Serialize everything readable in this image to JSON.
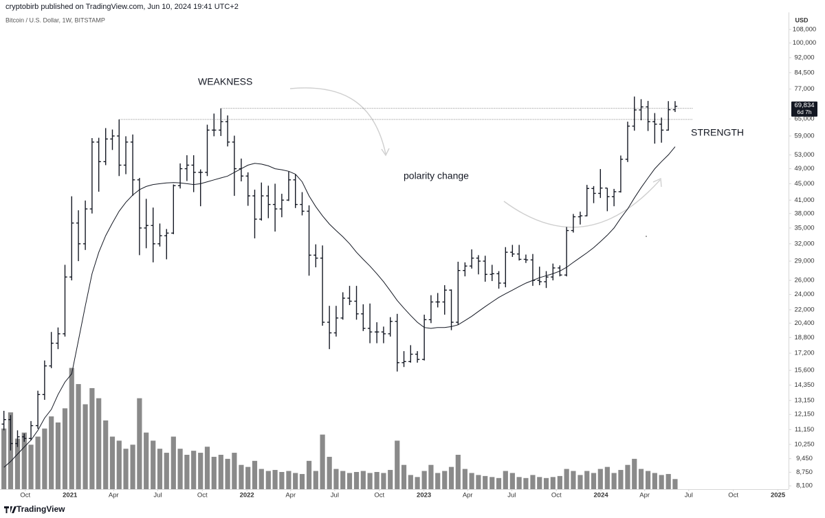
{
  "chart_data": {
    "type": "ohlc",
    "header": "cryptobirb published on TradingView.com, Jun 10, 2024 19:41 UTC+2",
    "title": "Bitcoin / U.S. Dollar, 1W, BITSTAMP",
    "y_axis_label": "USD",
    "footer": "TradingView",
    "log_scale": true,
    "grid": false,
    "color": "#131722",
    "volume_color": "#8a8a8a",
    "ma_color": "#131722",
    "level_color": "#555555",
    "annotation_color": "#cccccc",
    "xlim": [
      2020.605,
      2025.06
    ],
    "ylim": [
      7950,
      119000
    ],
    "vlim": [
      0,
      68000
    ],
    "xticks": [
      {
        "value": 2020.748,
        "label": "Oct"
      },
      2021,
      {
        "value": 2021.247,
        "label": "Apr"
      },
      {
        "value": 2021.496,
        "label": "Jul"
      },
      {
        "value": 2021.748,
        "label": "Oct"
      },
      2022,
      {
        "value": 2022.247,
        "label": "Apr"
      },
      {
        "value": 2022.496,
        "label": "Jul"
      },
      {
        "value": 2022.748,
        "label": "Oct"
      },
      2023,
      {
        "value": 2023.247,
        "label": "Apr"
      },
      {
        "value": 2023.496,
        "label": "Jul"
      },
      {
        "value": 2023.748,
        "label": "Oct"
      },
      2024,
      {
        "value": 2024.247,
        "label": "Apr"
      },
      {
        "value": 2024.496,
        "label": "Jul"
      },
      {
        "value": 2024.748,
        "label": "Oct"
      },
      2025
    ],
    "yticks": [
      {
        "value": 8100,
        "label": "8,100"
      },
      {
        "value": 8750,
        "label": "8,750"
      },
      {
        "value": 9450,
        "label": "9,450"
      },
      {
        "value": 10250,
        "label": "10,250"
      },
      {
        "value": 11150,
        "label": "11,150"
      },
      {
        "value": 12150,
        "label": "12,150"
      },
      {
        "value": 13150,
        "label": "13,150"
      },
      {
        "value": 14350,
        "label": "14,350"
      },
      {
        "value": 15600,
        "label": "15,600"
      },
      {
        "value": 17200,
        "label": "17,200"
      },
      {
        "value": 18800,
        "label": "18,800"
      },
      {
        "value": 20400,
        "label": "20,400"
      },
      {
        "value": 22000,
        "label": "22,000"
      },
      {
        "value": 24000,
        "label": "24,000"
      },
      {
        "value": 26000,
        "label": "26,000"
      },
      {
        "value": 29000,
        "label": "29,000"
      },
      {
        "value": 32000,
        "label": "32,000"
      },
      {
        "value": 35000,
        "label": "35,000"
      },
      {
        "value": 38000,
        "label": "38,000"
      },
      {
        "value": 41000,
        "label": "41,000"
      },
      {
        "value": 45000,
        "label": "45,000"
      },
      {
        "value": 49000,
        "label": "49,000"
      },
      {
        "value": 53000,
        "label": "53,000"
      },
      {
        "value": 59000,
        "label": "59,000"
      },
      {
        "value": 65000,
        "label": "65,000"
      },
      {
        "value": 77000,
        "label": "77,000"
      },
      {
        "value": 84500,
        "label": "84,500"
      },
      {
        "value": 92000,
        "label": "92,000"
      },
      {
        "value": 100000,
        "label": "100,000"
      },
      {
        "value": 108000,
        "label": "108,000"
      }
    ],
    "x": [
      2020.627,
      2020.665,
      2020.704,
      2020.742,
      2020.78,
      2020.819,
      2020.857,
      2020.895,
      2020.933,
      2020.972,
      2021.01,
      2021.048,
      2021.087,
      2021.125,
      2021.163,
      2021.202,
      2021.24,
      2021.278,
      2021.316,
      2021.355,
      2021.393,
      2021.431,
      2021.47,
      2021.508,
      2021.546,
      2021.585,
      2021.623,
      2021.661,
      2021.699,
      2021.738,
      2021.776,
      2021.814,
      2021.853,
      2021.891,
      2021.929,
      2021.968,
      2022.006,
      2022.044,
      2022.082,
      2022.121,
      2022.159,
      2022.197,
      2022.236,
      2022.274,
      2022.312,
      2022.351,
      2022.389,
      2022.427,
      2022.466,
      2022.504,
      2022.542,
      2022.58,
      2022.619,
      2022.657,
      2022.695,
      2022.734,
      2022.772,
      2022.81,
      2022.849,
      2022.887,
      2022.925,
      2022.963,
      2023.002,
      2023.04,
      2023.078,
      2023.117,
      2023.155,
      2023.193,
      2023.232,
      2023.27,
      2023.308,
      2023.346,
      2023.385,
      2023.423,
      2023.461,
      2023.5,
      2023.538,
      2023.576,
      2023.615,
      2023.653,
      2023.691,
      2023.729,
      2023.768,
      2023.806,
      2023.844,
      2023.883,
      2023.921,
      2023.959,
      2023.997,
      2024.036,
      2024.074,
      2024.112,
      2024.151,
      2024.189,
      2024.227,
      2024.266,
      2024.304,
      2024.342,
      2024.381,
      2024.419
    ],
    "open": [
      11500,
      11800,
      10300,
      10700,
      10600,
      11400,
      13600,
      16000,
      18200,
      19200,
      26500,
      36000,
      32000,
      39000,
      57000,
      51000,
      58000,
      59000,
      50000,
      57000,
      46000,
      35000,
      35500,
      32000,
      33500,
      34000,
      44500,
      49000,
      50000,
      48000,
      48000,
      61000,
      61000,
      64000,
      57000,
      49000,
      47000,
      42000,
      36800,
      42000,
      40000,
      39000,
      41000,
      46000,
      40000,
      38500,
      30000,
      29500,
      20500,
      19300,
      21000,
      23500,
      23100,
      21500,
      19800,
      19400,
      19400,
      19200,
      20600,
      16300,
      16400,
      17100,
      16600,
      20800,
      23000,
      23000,
      24600,
      20500,
      27500,
      28200,
      29500,
      29000,
      26900,
      27000,
      25600,
      30500,
      30200,
      29300,
      29200,
      26000,
      25800,
      26500,
      27900,
      26800,
      34500,
      37300,
      37500,
      43800,
      42600,
      43900,
      41800,
      43000,
      51700,
      62400,
      68400,
      69600,
      64000,
      63100,
      61000,
      68500
    ],
    "high": [
      12400,
      12100,
      11100,
      10900,
      11700,
      13900,
      16500,
      19400,
      19900,
      28400,
      41900,
      38700,
      40900,
      58300,
      58400,
      61700,
      61200,
      64800,
      58900,
      59500,
      46500,
      41300,
      39300,
      35900,
      34800,
      44800,
      50500,
      52900,
      52900,
      48800,
      62900,
      67000,
      69000,
      66300,
      59100,
      51900,
      48000,
      43500,
      45300,
      44500,
      45000,
      42500,
      48200,
      47400,
      42900,
      39800,
      31900,
      31700,
      22500,
      22500,
      24300,
      25200,
      25200,
      22700,
      22800,
      20500,
      20000,
      21100,
      21500,
      17400,
      18000,
      17400,
      21400,
      23900,
      24200,
      25300,
      24700,
      28900,
      28800,
      31000,
      30000,
      29900,
      28400,
      27400,
      31400,
      31800,
      31800,
      30100,
      30200,
      28100,
      27400,
      28600,
      28300,
      35200,
      37900,
      38400,
      44700,
      44400,
      48900,
      43900,
      43700,
      52800,
      64000,
      73800,
      72700,
      72000,
      67200,
      65500,
      71900,
      71900
    ],
    "low": [
      11100,
      9900,
      10100,
      10400,
      10500,
      11200,
      13200,
      15800,
      17600,
      18900,
      26000,
      29000,
      30900,
      38000,
      43000,
      50000,
      54500,
      47000,
      47500,
      42000,
      30000,
      31200,
      28800,
      31500,
      29300,
      33800,
      43800,
      45700,
      42900,
      39600,
      47000,
      58900,
      59000,
      55600,
      42000,
      45600,
      39700,
      33000,
      36500,
      37000,
      34300,
      37200,
      40800,
      39200,
      37600,
      26700,
      28000,
      20100,
      17600,
      18900,
      20800,
      22600,
      20800,
      19500,
      18200,
      18200,
      18200,
      18900,
      15500,
      15900,
      16300,
      16300,
      16500,
      20400,
      22300,
      21400,
      19600,
      20200,
      26600,
      27800,
      26900,
      25800,
      25900,
      24800,
      25000,
      29700,
      29100,
      28700,
      25200,
      25300,
      24900,
      26000,
      26600,
      26600,
      34100,
      35700,
      37400,
      40300,
      41500,
      38500,
      39600,
      42800,
      50900,
      60800,
      64500,
      60700,
      56500,
      56800,
      60800,
      67600
    ],
    "close": [
      11800,
      10300,
      10700,
      10600,
      11400,
      13600,
      16000,
      18200,
      19200,
      26500,
      36000,
      32000,
      39000,
      57000,
      51000,
      58000,
      59000,
      50000,
      57000,
      46000,
      35000,
      35500,
      32000,
      33500,
      34000,
      44500,
      49000,
      50000,
      48000,
      48000,
      61000,
      61000,
      64000,
      57000,
      49000,
      47000,
      42000,
      36800,
      42000,
      40000,
      39000,
      41000,
      46000,
      40000,
      38500,
      30000,
      29500,
      20500,
      19300,
      21000,
      23500,
      23100,
      21500,
      19800,
      19400,
      19400,
      19200,
      20600,
      16300,
      16400,
      17100,
      16600,
      20800,
      23000,
      23000,
      24600,
      20500,
      27500,
      28200,
      29500,
      29000,
      26900,
      27000,
      25600,
      30500,
      30200,
      29300,
      29200,
      26000,
      25800,
      26500,
      27900,
      26800,
      34500,
      37300,
      37500,
      43800,
      42600,
      43900,
      41800,
      43000,
      51700,
      62400,
      68400,
      69600,
      64000,
      63100,
      61000,
      68500,
      69834
    ],
    "volume": [
      30000,
      38000,
      25000,
      28000,
      22000,
      26000,
      30000,
      36000,
      33000,
      40000,
      60000,
      52000,
      42000,
      50000,
      45000,
      34000,
      26000,
      24000,
      20000,
      22000,
      45000,
      28000,
      24000,
      20000,
      18000,
      26000,
      20000,
      17000,
      19000,
      18000,
      21000,
      16000,
      17000,
      15000,
      18000,
      12000,
      11000,
      14000,
      10000,
      9000,
      9500,
      8500,
      9000,
      8000,
      7500,
      14000,
      9000,
      27000,
      16000,
      10000,
      9000,
      8000,
      8500,
      9000,
      8000,
      8500,
      8000,
      9500,
      24000,
      12000,
      7000,
      6000,
      9000,
      12000,
      8000,
      9000,
      11000,
      17000,
      10000,
      8000,
      7000,
      6500,
      6000,
      5500,
      9000,
      8000,
      6000,
      5500,
      7000,
      6000,
      5500,
      6000,
      6500,
      10000,
      9000,
      7000,
      9000,
      8000,
      10000,
      11000,
      8000,
      9500,
      12000,
      15000,
      10000,
      9000,
      8000,
      7000,
      7500,
      5000
    ],
    "ma": [
      9000,
      9300,
      9700,
      10100,
      10500,
      11100,
      11900,
      12500,
      13600,
      14600,
      15300,
      18500,
      22500,
      27000,
      30500,
      33500,
      36000,
      38500,
      40500,
      42200,
      43500,
      44300,
      44800,
      45000,
      45200,
      45300,
      45200,
      45000,
      44800,
      45000,
      45500,
      46000,
      46500,
      47000,
      48000,
      49000,
      50000,
      50500,
      50300,
      49800,
      49000,
      48700,
      48300,
      47500,
      45500,
      42000,
      39500,
      37500,
      35800,
      34500,
      33300,
      32000,
      30500,
      29300,
      28200,
      27000,
      25800,
      24500,
      23200,
      22200,
      21300,
      20500,
      19900,
      19800,
      19900,
      19900,
      20000,
      20200,
      20700,
      21200,
      21800,
      22400,
      23000,
      23600,
      24100,
      24600,
      25100,
      25600,
      26000,
      26400,
      26700,
      27000,
      27400,
      28000,
      28800,
      29600,
      30400,
      31300,
      32400,
      33600,
      35000,
      37000,
      39000,
      41500,
      44000,
      46500,
      49000,
      51000,
      53000,
      55500
    ],
    "levels": [
      {
        "value": 69000,
        "x": [
          2021.853,
          2024.52
        ]
      },
      {
        "value": 64800,
        "x": [
          2021.278,
          2024.52
        ]
      }
    ],
    "last_price": {
      "value": 69834,
      "label": "69,834"
    },
    "countdown": "6d 7h",
    "annotations": [
      "WEAKNESS",
      "polarity change",
      "STRENGTH"
    ]
  }
}
